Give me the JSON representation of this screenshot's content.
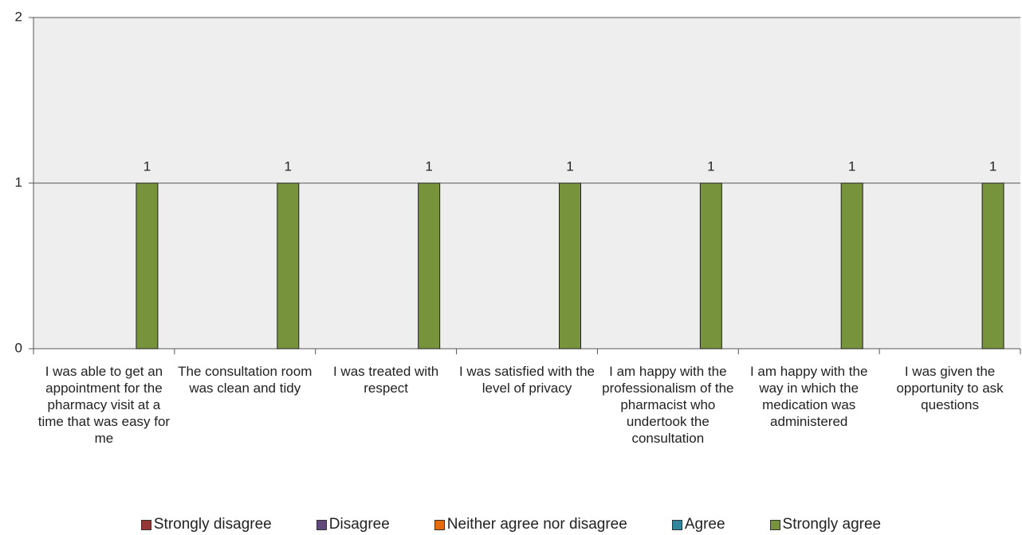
{
  "chart_data": {
    "type": "bar",
    "categories": [
      "I was able to get an appointment for the pharmacy visit at a time that was easy for me",
      "The consultation room was clean and tidy",
      "I was treated with respect",
      "I was satisfied with the level of privacy",
      "I am happy with the professionalism of the pharmacist who undertook the consultation",
      "I am happy with the way in which the medication was administered",
      "I was given the opportunity to ask questions"
    ],
    "series": [
      {
        "name": "Strongly disagree",
        "color": "#953735",
        "values": [
          0,
          0,
          0,
          0,
          0,
          0,
          0
        ]
      },
      {
        "name": "Disagree",
        "color": "#604a7b",
        "values": [
          0,
          0,
          0,
          0,
          0,
          0,
          0
        ]
      },
      {
        "name": "Neither agree nor disagree",
        "color": "#e46c0a",
        "values": [
          0,
          0,
          0,
          0,
          0,
          0,
          0
        ]
      },
      {
        "name": "Agree",
        "color": "#31859c",
        "values": [
          0,
          0,
          0,
          0,
          0,
          0,
          0
        ]
      },
      {
        "name": "Strongly agree",
        "color": "#77933c",
        "values": [
          1,
          1,
          1,
          1,
          1,
          1,
          1
        ]
      }
    ],
    "ylim": [
      0,
      2
    ],
    "yticks": [
      0,
      1,
      2
    ],
    "grid": true,
    "legend": "bottom"
  }
}
